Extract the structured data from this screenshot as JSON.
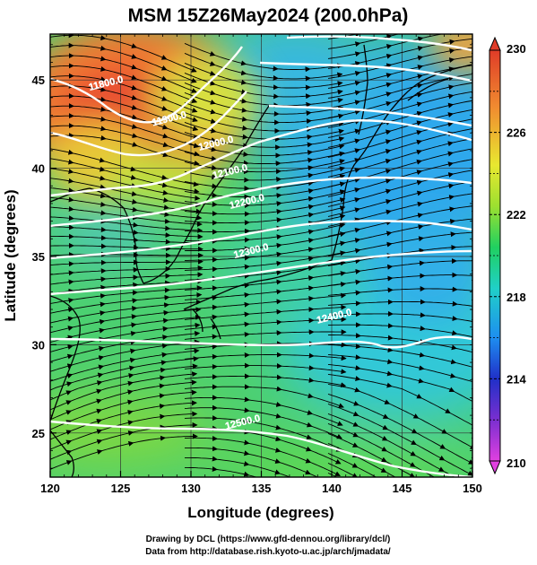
{
  "title": "MSM 15Z26May2024 (200.0hPa)",
  "xlabel": "Longitude (degrees)",
  "ylabel": "Latitude  (degrees)",
  "x_ticks": [
    "120",
    "125",
    "130",
    "135",
    "140",
    "145",
    "150"
  ],
  "y_ticks": [
    "25",
    "30",
    "35",
    "40",
    "45"
  ],
  "x_range": [
    120,
    150
  ],
  "y_range": [
    22.5,
    47.6
  ],
  "colorbar": {
    "min": 210,
    "max": 230,
    "tick_labels": [
      "230",
      "226",
      "222",
      "218",
      "214",
      "210"
    ],
    "colors": [
      "#e040e0",
      "#7a2fd0",
      "#2030c8",
      "#1e8ef0",
      "#20d0c8",
      "#20d060",
      "#9ce030",
      "#e8e830",
      "#f08c30",
      "#e03c28"
    ]
  },
  "contours": [
    {
      "label": "11800.0",
      "lon": 122.8,
      "lat": 44.4
    },
    {
      "label": "11900.0",
      "lon": 127.3,
      "lat": 42.4
    },
    {
      "label": "12000.0",
      "lon": 130.6,
      "lat": 41.0
    },
    {
      "label": "12100.0",
      "lon": 131.6,
      "lat": 39.4
    },
    {
      "label": "12200.0",
      "lon": 132.8,
      "lat": 37.7
    },
    {
      "label": "12300.0",
      "lon": 133.1,
      "lat": 34.9
    },
    {
      "label": "12400.0",
      "lon": 139.0,
      "lat": 31.2
    },
    {
      "label": "12500.0",
      "lon": 132.5,
      "lat": 25.2
    }
  ],
  "footer": {
    "line1": "Drawing by DCL (https://www.gfd-dennou.org/library/dcl/)",
    "line2": "Data from http://database.rish.kyoto-u.ac.jp/arch/jmadata/"
  }
}
